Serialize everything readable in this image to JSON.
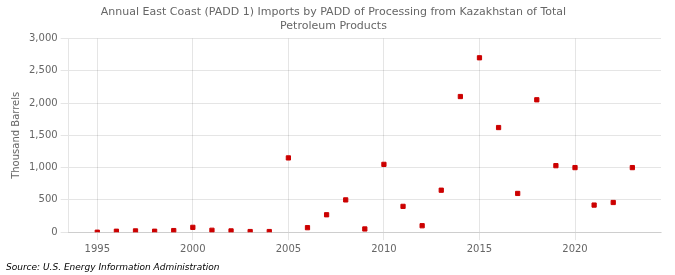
{
  "chart_data": {
    "type": "scatter",
    "title": "Annual East Coast (PADD 1) Imports by PADD of Processing from Kazakhstan of Total\nPetroleum Products",
    "ylabel": "Thousand Barrels",
    "annotation": "Source: U.S. Energy Information Administration",
    "x": [
      1995,
      1996,
      1997,
      1998,
      1999,
      2000,
      2001,
      2002,
      2003,
      2004,
      2005,
      2006,
      2007,
      2008,
      2009,
      2010,
      2011,
      2012,
      2013,
      2014,
      2015,
      2016,
      2017,
      2018,
      2019,
      2020,
      2021,
      2022,
      2023
    ],
    "values": [
      0,
      15,
      20,
      15,
      25,
      75,
      30,
      20,
      10,
      10,
      1150,
      70,
      270,
      500,
      50,
      1050,
      400,
      100,
      650,
      2100,
      2700,
      1620,
      600,
      2050,
      1030,
      1000,
      420,
      460,
      1000
    ],
    "color": "#cc0000",
    "marker": "square",
    "xlim": [
      1993.5,
      2024.5
    ],
    "xticks": [
      1995,
      2000,
      2005,
      2010,
      2015,
      2020
    ],
    "ylim": [
      0,
      3000
    ],
    "yticks": [
      0,
      500,
      {
        "value": 1000,
        "label": "1,000"
      },
      {
        "value": 1500,
        "label": "1,500"
      },
      {
        "value": 2000,
        "label": "2,000"
      },
      {
        "value": 2500,
        "label": "2,500"
      },
      {
        "value": 3000,
        "label": "3,000"
      }
    ],
    "grid": true
  }
}
